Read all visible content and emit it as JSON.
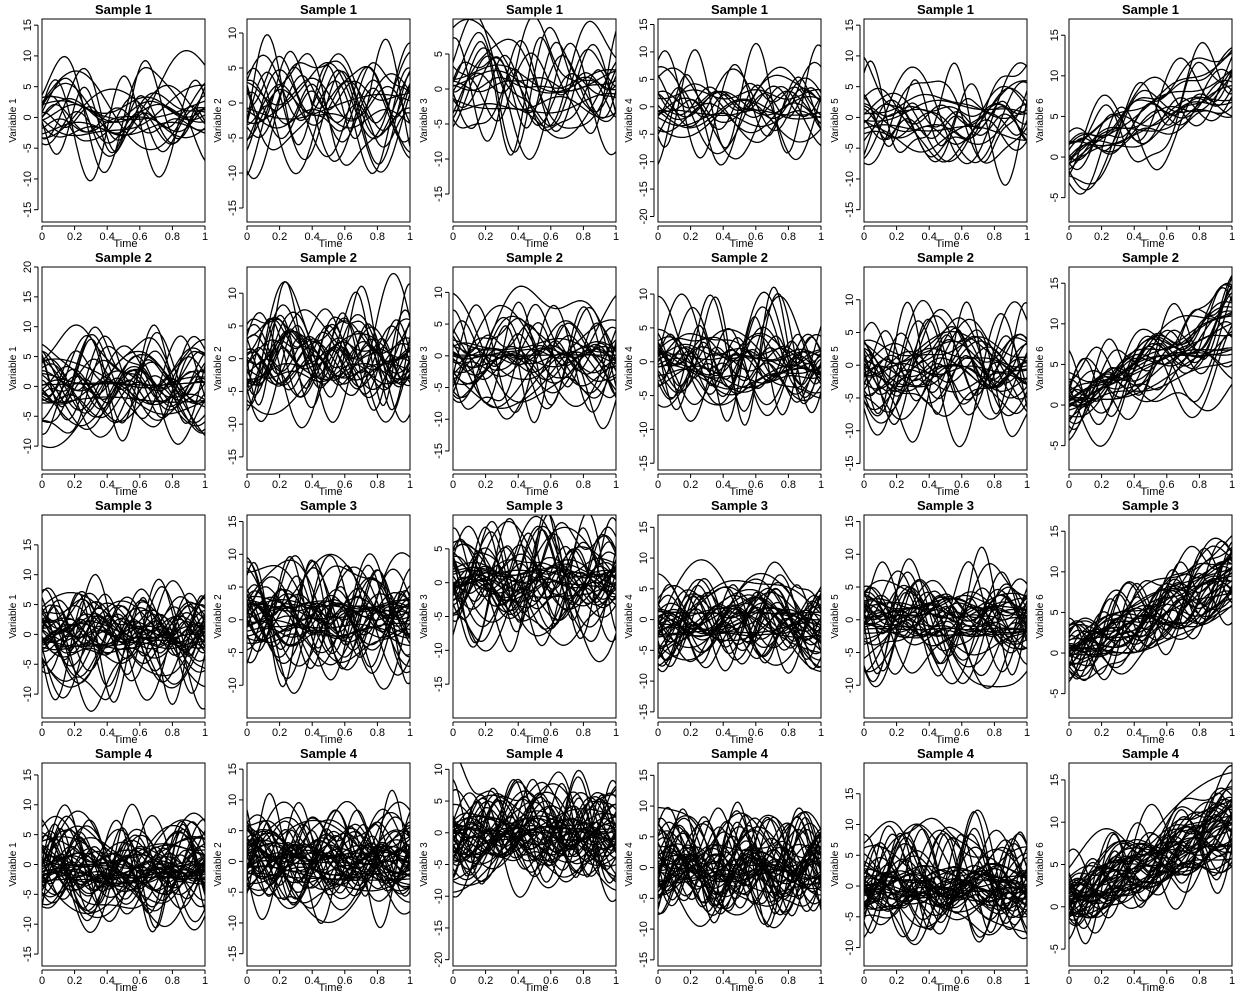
{
  "colors": {
    "line": "#000000",
    "background": "#ffffff"
  },
  "chart_data": [
    {
      "type": "line",
      "title": "Sample 1",
      "xlabel": "Time",
      "ylabel": "Variable 1",
      "xlim": [
        0,
        1
      ],
      "ylim": [
        -17,
        16
      ],
      "xticks": [
        "0",
        "0.2",
        "0.4",
        "0.6",
        "0.8",
        "1"
      ],
      "yticks": [
        "-15",
        "-10",
        "-5",
        "0",
        "5",
        "10",
        "15"
      ],
      "n_curves": 20,
      "trend": 0,
      "amp": 4.5
    },
    {
      "type": "line",
      "title": "Sample 1",
      "xlabel": "Time",
      "ylabel": "Variable 2",
      "xlim": [
        0,
        1
      ],
      "ylim": [
        -17,
        12
      ],
      "xticks": [
        "0",
        "0.2",
        "0.4",
        "0.6",
        "0.8",
        "1"
      ],
      "yticks": [
        "-15",
        "-10",
        "-5",
        "0",
        "5",
        "10"
      ],
      "n_curves": 20,
      "trend": 0,
      "amp": 4.5
    },
    {
      "type": "line",
      "title": "Sample 1",
      "xlabel": "Time",
      "ylabel": "Variable 3",
      "xlim": [
        0,
        1
      ],
      "ylim": [
        -19,
        10
      ],
      "xticks": [
        "0",
        "0.2",
        "0.4",
        "0.6",
        "0.8",
        "1"
      ],
      "yticks": [
        "-15",
        "-10",
        "-5",
        "0",
        "5"
      ],
      "n_curves": 20,
      "trend": 0,
      "amp": 4.5
    },
    {
      "type": "line",
      "title": "Sample 1",
      "xlabel": "Time",
      "ylabel": "Variable 4",
      "xlim": [
        0,
        1
      ],
      "ylim": [
        -21,
        16
      ],
      "xticks": [
        "0",
        "0.2",
        "0.4",
        "0.6",
        "0.8",
        "1"
      ],
      "yticks": [
        "-20",
        "-15",
        "-10",
        "-5",
        "0",
        "5",
        "10",
        "15"
      ],
      "n_curves": 20,
      "trend": 0,
      "amp": 5
    },
    {
      "type": "line",
      "title": "Sample 1",
      "xlabel": "Time",
      "ylabel": "Variable 5",
      "xlim": [
        0,
        1
      ],
      "ylim": [
        -17,
        16
      ],
      "xticks": [
        "0",
        "0.2",
        "0.4",
        "0.6",
        "0.8",
        "1"
      ],
      "yticks": [
        "-15",
        "-10",
        "-5",
        "0",
        "5",
        "10",
        "15"
      ],
      "n_curves": 20,
      "trend": 0,
      "amp": 4.5
    },
    {
      "type": "line",
      "title": "Sample 1",
      "xlabel": "Time",
      "ylabel": "Variable 6",
      "xlim": [
        0,
        1
      ],
      "ylim": [
        -8,
        17
      ],
      "xticks": [
        "0",
        "0.2",
        "0.4",
        "0.6",
        "0.8",
        "1"
      ],
      "yticks": [
        "-5",
        "0",
        "5",
        "10",
        "15"
      ],
      "n_curves": 20,
      "trend": 9,
      "amp": 2.5
    },
    {
      "type": "line",
      "title": "Sample 2",
      "xlabel": "Time",
      "ylabel": "Variable 1",
      "xlim": [
        0,
        1
      ],
      "ylim": [
        -14,
        20
      ],
      "xticks": [
        "0",
        "0.2",
        "0.4",
        "0.6",
        "0.8",
        "1"
      ],
      "yticks": [
        "-10",
        "-5",
        "0",
        "5",
        "10",
        "15",
        "20"
      ],
      "n_curves": 30,
      "trend": 0,
      "amp": 4.5
    },
    {
      "type": "line",
      "title": "Sample 2",
      "xlabel": "Time",
      "ylabel": "Variable 2",
      "xlim": [
        0,
        1
      ],
      "ylim": [
        -17,
        14
      ],
      "xticks": [
        "0",
        "0.2",
        "0.4",
        "0.6",
        "0.8",
        "1"
      ],
      "yticks": [
        "-15",
        "-10",
        "-5",
        "0",
        "5",
        "10"
      ],
      "n_curves": 30,
      "trend": 0,
      "amp": 4.5
    },
    {
      "type": "line",
      "title": "Sample 2",
      "xlabel": "Time",
      "ylabel": "Variable 3",
      "xlim": [
        0,
        1
      ],
      "ylim": [
        -18,
        14
      ],
      "xticks": [
        "0",
        "0.2",
        "0.4",
        "0.6",
        "0.8",
        "1"
      ],
      "yticks": [
        "-15",
        "-10",
        "-5",
        "0",
        "5",
        "10"
      ],
      "n_curves": 30,
      "trend": 0,
      "amp": 4.5
    },
    {
      "type": "line",
      "title": "Sample 2",
      "xlabel": "Time",
      "ylabel": "Variable 4",
      "xlim": [
        0,
        1
      ],
      "ylim": [
        -16,
        14
      ],
      "xticks": [
        "0",
        "0.2",
        "0.4",
        "0.6",
        "0.8",
        "1"
      ],
      "yticks": [
        "-15",
        "-10",
        "-5",
        "0",
        "5",
        "10"
      ],
      "n_curves": 30,
      "trend": 0,
      "amp": 4.5
    },
    {
      "type": "line",
      "title": "Sample 2",
      "xlabel": "Time",
      "ylabel": "Variable 5",
      "xlim": [
        0,
        1
      ],
      "ylim": [
        -16,
        15
      ],
      "xticks": [
        "0",
        "0.2",
        "0.4",
        "0.6",
        "0.8",
        "1"
      ],
      "yticks": [
        "-15",
        "-10",
        "-5",
        "0",
        "5",
        "10"
      ],
      "n_curves": 30,
      "trend": 0,
      "amp": 4.5
    },
    {
      "type": "line",
      "title": "Sample 2",
      "xlabel": "Time",
      "ylabel": "Variable 6",
      "xlim": [
        0,
        1
      ],
      "ylim": [
        -8,
        17
      ],
      "xticks": [
        "0",
        "0.2",
        "0.4",
        "0.6",
        "0.8",
        "1"
      ],
      "yticks": [
        "-5",
        "0",
        "5",
        "10",
        "15"
      ],
      "n_curves": 30,
      "trend": 9,
      "amp": 2.5
    },
    {
      "type": "line",
      "title": "Sample 3",
      "xlabel": "Time",
      "ylabel": "Variable 1",
      "xlim": [
        0,
        1
      ],
      "ylim": [
        -14,
        20
      ],
      "xticks": [
        "0",
        "0.2",
        "0.4",
        "0.6",
        "0.8",
        "1"
      ],
      "yticks": [
        "-10",
        "-5",
        "0",
        "5",
        "10",
        "15"
      ],
      "n_curves": 40,
      "trend": 0,
      "amp": 4.5
    },
    {
      "type": "line",
      "title": "Sample 3",
      "xlabel": "Time",
      "ylabel": "Variable 2",
      "xlim": [
        0,
        1
      ],
      "ylim": [
        -15,
        16
      ],
      "xticks": [
        "0",
        "0.2",
        "0.4",
        "0.6",
        "0.8",
        "1"
      ],
      "yticks": [
        "-10",
        "-5",
        "0",
        "5",
        "10",
        "15"
      ],
      "n_curves": 40,
      "trend": 0,
      "amp": 4.5
    },
    {
      "type": "line",
      "title": "Sample 3",
      "xlabel": "Time",
      "ylabel": "Variable 3",
      "xlim": [
        0,
        1
      ],
      "ylim": [
        -20,
        10
      ],
      "xticks": [
        "0",
        "0.2",
        "0.4",
        "0.6",
        "0.8",
        "1"
      ],
      "yticks": [
        "-15",
        "-10",
        "-5",
        "0",
        "5"
      ],
      "n_curves": 40,
      "trend": 0,
      "amp": 4.5
    },
    {
      "type": "line",
      "title": "Sample 3",
      "xlabel": "Time",
      "ylabel": "Variable 4",
      "xlim": [
        0,
        1
      ],
      "ylim": [
        -16,
        17
      ],
      "xticks": [
        "0",
        "0.2",
        "0.4",
        "0.6",
        "0.8",
        "1"
      ],
      "yticks": [
        "-15",
        "-10",
        "-5",
        "0",
        "5",
        "10",
        "15"
      ],
      "n_curves": 40,
      "trend": 0,
      "amp": 4.5
    },
    {
      "type": "line",
      "title": "Sample 3",
      "xlabel": "Time",
      "ylabel": "Variable 5",
      "xlim": [
        0,
        1
      ],
      "ylim": [
        -15,
        16
      ],
      "xticks": [
        "0",
        "0.2",
        "0.4",
        "0.6",
        "0.8",
        "1"
      ],
      "yticks": [
        "-10",
        "-5",
        "0",
        "5",
        "10",
        "15"
      ],
      "n_curves": 40,
      "trend": 0,
      "amp": 4.5
    },
    {
      "type": "line",
      "title": "Sample 3",
      "xlabel": "Time",
      "ylabel": "Variable 6",
      "xlim": [
        0,
        1
      ],
      "ylim": [
        -8,
        17
      ],
      "xticks": [
        "0",
        "0.2",
        "0.4",
        "0.6",
        "0.8",
        "1"
      ],
      "yticks": [
        "-5",
        "0",
        "5",
        "10",
        "15"
      ],
      "n_curves": 40,
      "trend": 9,
      "amp": 2.5
    },
    {
      "type": "line",
      "title": "Sample 4",
      "xlabel": "Time",
      "ylabel": "Variable 1",
      "xlim": [
        0,
        1
      ],
      "ylim": [
        -17,
        17
      ],
      "xticks": [
        "0",
        "0.2",
        "0.4",
        "0.6",
        "0.8",
        "1"
      ],
      "yticks": [
        "-15",
        "-10",
        "-5",
        "0",
        "5",
        "10",
        "15"
      ],
      "n_curves": 50,
      "trend": 0,
      "amp": 4.5
    },
    {
      "type": "line",
      "title": "Sample 4",
      "xlabel": "Time",
      "ylabel": "Variable 2",
      "xlim": [
        0,
        1
      ],
      "ylim": [
        -17,
        16
      ],
      "xticks": [
        "0",
        "0.2",
        "0.4",
        "0.6",
        "0.8",
        "1"
      ],
      "yticks": [
        "-15",
        "-10",
        "-5",
        "0",
        "5",
        "10",
        "15"
      ],
      "n_curves": 50,
      "trend": 0,
      "amp": 4.5
    },
    {
      "type": "line",
      "title": "Sample 4",
      "xlabel": "Time",
      "ylabel": "Variable 3",
      "xlim": [
        0,
        1
      ],
      "ylim": [
        -21,
        11
      ],
      "xticks": [
        "0",
        "0.2",
        "0.4",
        "0.6",
        "0.8",
        "1"
      ],
      "yticks": [
        "-20",
        "-15",
        "-10",
        "-5",
        "0",
        "5",
        "10"
      ],
      "n_curves": 50,
      "trend": 0,
      "amp": 4.5
    },
    {
      "type": "line",
      "title": "Sample 4",
      "xlabel": "Time",
      "ylabel": "Variable 4",
      "xlim": [
        0,
        1
      ],
      "ylim": [
        -16,
        17
      ],
      "xticks": [
        "0",
        "0.2",
        "0.4",
        "0.6",
        "0.8",
        "1"
      ],
      "yticks": [
        "-15",
        "-10",
        "-5",
        "0",
        "5",
        "10",
        "15"
      ],
      "n_curves": 50,
      "trend": 0,
      "amp": 4.5
    },
    {
      "type": "line",
      "title": "Sample 4",
      "xlabel": "Time",
      "ylabel": "Variable 5",
      "xlim": [
        0,
        1
      ],
      "ylim": [
        -13,
        20
      ],
      "xticks": [
        "0",
        "0.2",
        "0.4",
        "0.6",
        "0.8",
        "1"
      ],
      "yticks": [
        "-10",
        "-5",
        "0",
        "5",
        "10",
        "15"
      ],
      "n_curves": 50,
      "trend": 0,
      "amp": 4.5
    },
    {
      "type": "line",
      "title": "Sample 4",
      "xlabel": "Time",
      "ylabel": "Variable 6",
      "xlim": [
        0,
        1
      ],
      "ylim": [
        -7,
        17
      ],
      "xticks": [
        "0",
        "0.2",
        "0.4",
        "0.6",
        "0.8",
        "1"
      ],
      "yticks": [
        "-5",
        "0",
        "5",
        "10",
        "15"
      ],
      "n_curves": 50,
      "trend": 9,
      "amp": 2.5
    }
  ]
}
